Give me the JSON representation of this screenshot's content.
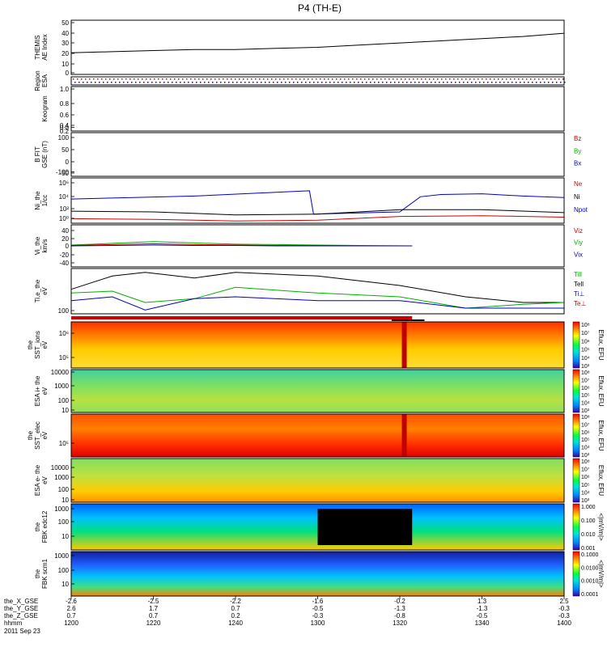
{
  "chart_data": {
    "type": "stackplot",
    "title": "P4 (TH-E)",
    "date_label": "2011 Sep 23",
    "x": {
      "ticks": [
        "1200",
        "1220",
        "1240",
        "1300",
        "1320",
        "1340",
        "1400"
      ],
      "range": [
        "1200",
        "1400"
      ],
      "ephemeris": [
        {
          "label": "the_X_GSE",
          "values": [
            "-2.6",
            "-2.5",
            "-2.2",
            "-1.6",
            "-0.2",
            "1.3",
            "2.5"
          ]
        },
        {
          "label": "the_Y_GSE",
          "values": [
            "2.6",
            "1.7",
            "0.7",
            "-0.5",
            "-1.3",
            "-1.3",
            "-0.3"
          ]
        },
        {
          "label": "the_Z_GSE",
          "values": [
            "0.7",
            "0.7",
            "0.2",
            "-0.3",
            "-0.8",
            "-0.5",
            "-0.3"
          ]
        },
        {
          "label": "hhmm",
          "values": [
            "1200",
            "1220",
            "1240",
            "1300",
            "1320",
            "1340",
            "1400"
          ]
        }
      ]
    },
    "panels": [
      {
        "id": "ae",
        "ylabel": [
          "THEMIS",
          "AE Index"
        ],
        "yticks": [
          "50",
          "40",
          "30",
          "20",
          "10",
          "0"
        ],
        "ylim": [
          0,
          50
        ],
        "series": [
          {
            "color": "#000000",
            "x": [
              0,
              10,
              20,
              30,
              40,
              50,
              60,
              70,
              80,
              90,
              100,
              110,
              120
            ],
            "y": [
              20,
              21,
              22,
              23,
              23,
              24,
              25,
              27,
              29,
              31,
              33,
              35,
              38
            ]
          }
        ]
      },
      {
        "id": "region",
        "ylabel": [
          "Region",
          "ESA"
        ],
        "yticks": [],
        "ylim": [
          0,
          1
        ],
        "series": []
      },
      {
        "id": "keogram",
        "ylabel": [
          "Keogram"
        ],
        "yticks": [
          "1.0",
          "0.8",
          "0.6",
          "0.4",
          "0.2",
          "0.0"
        ],
        "ylim": [
          0,
          1
        ],
        "series": []
      },
      {
        "id": "bfit",
        "ylabel": [
          "B FIT",
          "GSE (nT)"
        ],
        "yticks": [
          "100",
          "50",
          "0",
          "-50",
          "-100"
        ],
        "ylim": [
          -100,
          100
        ],
        "legend": [
          {
            "label": "Bz",
            "color": "#d00000"
          },
          {
            "label": "By",
            "color": "#00b000"
          },
          {
            "label": "Bx",
            "color": "#0000c0"
          }
        ],
        "series": []
      },
      {
        "id": "ni",
        "ylabel": [
          "Ni_the",
          "1/cc"
        ],
        "yticks": [
          "10⁶",
          "10⁴",
          "10²",
          "10⁰"
        ],
        "ylim": [
          0,
          6
        ],
        "legend": [
          {
            "label": "Ne",
            "color": "#d00000"
          },
          {
            "label": "Ni",
            "color": "#000000"
          },
          {
            "label": "Npot",
            "color": "#0000c0"
          }
        ],
        "series": [
          {
            "name": "Npot",
            "color": "#0000c0",
            "x": [
              0,
              15,
              30,
              58,
              59,
              80,
              85,
              90,
              100,
              110,
              120
            ],
            "y": [
              3.2,
              3.4,
              3.6,
              4.3,
              1.2,
              1.5,
              3.5,
              3.8,
              3.9,
              3.6,
              3.4
            ]
          },
          {
            "name": "Ni",
            "color": "#000000",
            "x": [
              0,
              20,
              40,
              60,
              80,
              100,
              120
            ],
            "y": [
              1.6,
              1.5,
              1.1,
              1.2,
              1.8,
              1.8,
              1.4
            ]
          },
          {
            "name": "Ne",
            "color": "#d00000",
            "x": [
              0,
              20,
              40,
              60,
              80,
              100,
              120
            ],
            "y": [
              0.6,
              0.5,
              0.3,
              0.4,
              0.9,
              1.0,
              0.8
            ]
          }
        ]
      },
      {
        "id": "vi",
        "ylabel": [
          "Vi_the",
          "km/s"
        ],
        "yticks": [
          "40",
          "20",
          "0",
          "-20",
          "-40"
        ],
        "ylim": [
          -50,
          50
        ],
        "legend": [
          {
            "label": "Viz",
            "color": "#d00000"
          },
          {
            "label": "Viy",
            "color": "#00b000"
          },
          {
            "label": "Vix",
            "color": "#0000c0"
          }
        ],
        "series": [
          {
            "name": "Viy",
            "color": "#00b000",
            "x": [
              0,
              10,
              20,
              30,
              40,
              50,
              60,
              70,
              83
            ],
            "y": [
              2,
              6,
              10,
              7,
              4,
              3,
              2,
              1,
              0
            ]
          },
          {
            "name": "Viz",
            "color": "#d00000",
            "x": [
              0,
              10,
              20,
              30,
              40,
              50,
              60,
              70,
              83
            ],
            "y": [
              1,
              3,
              5,
              3,
              2,
              1,
              1,
              0,
              0
            ]
          },
          {
            "name": "Vix",
            "color": "#0000c0",
            "x": [
              0,
              10,
              20,
              30,
              40,
              50,
              60,
              70,
              83
            ],
            "y": [
              0,
              1,
              2,
              1,
              1,
              0,
              0,
              0,
              0
            ]
          }
        ]
      },
      {
        "id": "ti",
        "ylabel": [
          "Ti,e_the",
          "eV"
        ],
        "yticks": [
          "100"
        ],
        "ylim": [
          60,
          5000
        ],
        "legend": [
          {
            "label": "Till",
            "color": "#00b000"
          },
          {
            "label": "Tell",
            "color": "#000000"
          },
          {
            "label": "Ti⊥",
            "color": "#0000c0"
          },
          {
            "label": "Te⊥",
            "color": "#d00000"
          }
        ],
        "series": [
          {
            "name": "Tell",
            "color": "#000000",
            "x": [
              0,
              10,
              18,
              30,
              40,
              60,
              80,
              96,
              110,
              120
            ],
            "y": [
              2.55,
              2.9,
              3.0,
              2.85,
              3.0,
              2.9,
              2.65,
              2.35,
              2.2,
              2.2
            ]
          },
          {
            "name": "Till",
            "color": "#00b000",
            "x": [
              0,
              10,
              18,
              30,
              40,
              60,
              80,
              96,
              110,
              120
            ],
            "y": [
              2.45,
              2.5,
              2.2,
              2.3,
              2.6,
              2.45,
              2.35,
              2.05,
              2.15,
              2.2
            ]
          },
          {
            "name": "Ti⊥",
            "color": "#0000c0",
            "x": [
              0,
              10,
              18,
              30,
              40,
              60,
              80,
              96,
              110,
              120
            ],
            "y": [
              2.25,
              2.35,
              2.0,
              2.3,
              2.35,
              2.25,
              2.25,
              2.05,
              2.05,
              2.05
            ]
          }
        ]
      },
      {
        "id": "sst_ions",
        "ylabel": [
          "the",
          "SST_ions",
          "eV"
        ],
        "yticks": [
          "10⁶",
          "10⁵"
        ],
        "spectrogram": true,
        "colorbar": {
          "label": "Eflux, EFU",
          "ticks": [
            "10⁸",
            "10⁷",
            "10⁶",
            "10⁵",
            "10⁴",
            "10³"
          ]
        }
      },
      {
        "id": "esa_ions",
        "ylabel": [
          "ESA i+ the",
          "eV"
        ],
        "yticks": [
          "10000",
          "1000",
          "100",
          "10"
        ],
        "spectrogram": true,
        "colorbar": {
          "label": "Eflux, EFU",
          "ticks": [
            "10⁸",
            "10⁷",
            "10⁶",
            "10⁵",
            "10⁴",
            "10³"
          ]
        }
      },
      {
        "id": "sst_elec",
        "ylabel": [
          "the",
          "SST_elec",
          "eV"
        ],
        "yticks": [
          "10⁵"
        ],
        "spectrogram": true,
        "colorbar": {
          "label": "Eflux, EFU",
          "ticks": [
            "10⁸",
            "10⁷",
            "10⁶",
            "10⁵",
            "10⁴",
            "10³"
          ]
        }
      },
      {
        "id": "esa_elec",
        "ylabel": [
          "ESA e- the",
          "eV"
        ],
        "yticks": [
          "10000",
          "1000",
          "100",
          "10"
        ],
        "spectrogram": true,
        "colorbar": {
          "label": "Eflux, EFU",
          "ticks": [
            "10⁸",
            "10⁷",
            "10⁶",
            "10⁵",
            "10⁴",
            "10³"
          ]
        }
      },
      {
        "id": "fbk_edc12",
        "ylabel": [
          "the",
          "FBK edc12"
        ],
        "yticks": [
          "1000",
          "100",
          "10"
        ],
        "spectrogram": true,
        "colorbar": {
          "label": "<|mV/m|>",
          "ticks": [
            "1.000",
            "0.100",
            "0.010",
            "0.001"
          ]
        }
      },
      {
        "id": "fbk_scm1",
        "ylabel": [
          "the",
          "FBK scm1"
        ],
        "yticks": [
          "1000",
          "100",
          "10"
        ],
        "spectrogram": true,
        "colorbar": {
          "label": "<|mV/m|>",
          "ticks": [
            "0.1000",
            "0.0100",
            "0.0010",
            "0.0001"
          ]
        }
      }
    ]
  }
}
